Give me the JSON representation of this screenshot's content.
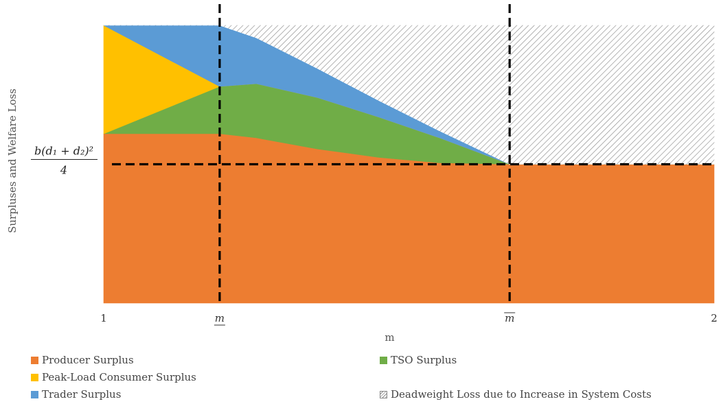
{
  "chart_data": {
    "type": "area",
    "xlabel": "m",
    "ylabel": "Surpluses and Welfare Loss",
    "xlim": [
      1,
      2
    ],
    "ylim": [
      0,
      1
    ],
    "x_ticks": [
      {
        "value": 1,
        "label": "1"
      },
      {
        "value": 1.19,
        "label": "m",
        "decoration": "underline"
      },
      {
        "value": 1.665,
        "label": "m",
        "decoration": "overline"
      },
      {
        "value": 2,
        "label": "2"
      }
    ],
    "y_marker": {
      "value": 0.5,
      "numerator": "b(d₁ + d₂)²",
      "denominator": "4"
    },
    "reference_lines": {
      "vertical": [
        1.19,
        1.665
      ],
      "horizontal": [
        0.5
      ]
    },
    "x": [
      1,
      1.19,
      1.25,
      1.35,
      1.45,
      1.55,
      1.665,
      1.8,
      2
    ],
    "series": [
      {
        "name": "Producer Surplus",
        "color": "#ED7D31",
        "values": [
          0.61,
          0.61,
          0.595,
          0.555,
          0.525,
          0.505,
          0.5,
          0.5,
          0.5
        ]
      },
      {
        "name": "TSO Surplus",
        "color": "#70AD47",
        "values": [
          0.0,
          0.17,
          0.195,
          0.185,
          0.145,
          0.09,
          0.0,
          0.0,
          0.0
        ]
      },
      {
        "name": "Peak-Load Consumer Surplus",
        "color": "#FFC000",
        "values": [
          0.39,
          0.0,
          0.0,
          0.0,
          0.0,
          0.0,
          0.0,
          0.0,
          0.0
        ]
      },
      {
        "name": "Trader Surplus",
        "color": "#5B9BD5",
        "values": [
          0.0,
          0.22,
          0.165,
          0.105,
          0.06,
          0.025,
          0.0,
          0.0,
          0.0
        ]
      },
      {
        "name": "Deadweight Loss due to Increase in System Costs",
        "color": "#8a8a8a",
        "pattern": "hatch",
        "values": [
          0.0,
          0.0,
          0.045,
          0.155,
          0.27,
          0.38,
          0.5,
          0.5,
          0.5
        ]
      }
    ],
    "legend_position": "bottom"
  }
}
